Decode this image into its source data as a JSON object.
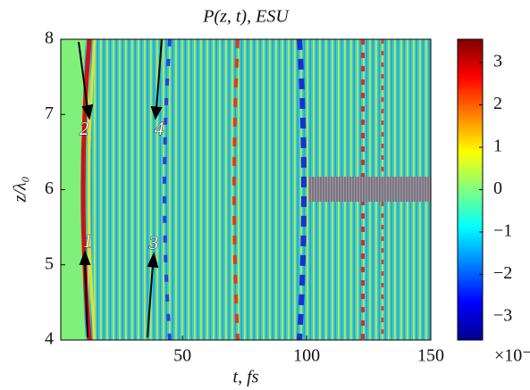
{
  "chart_data": {
    "type": "heatmap",
    "title": "P(z, t), ESU",
    "x_label": "t, fs",
    "y_label": "z/λ₀",
    "xlim": [
      1,
      150
    ],
    "xticks": [
      50,
      100,
      150
    ],
    "ylim": [
      4,
      8
    ],
    "yticks": [
      4,
      5,
      6,
      7,
      8
    ],
    "colormap": "jet",
    "clim": [
      -3.55,
      3.55
    ],
    "cticks": [
      {
        "value": -3,
        "label": "−3"
      },
      {
        "value": -2,
        "label": "−2"
      },
      {
        "value": -1,
        "label": "−1"
      },
      0,
      1,
      2,
      3
    ],
    "colorbar_multiplier": "×10⁻³",
    "annotations": [
      "1",
      "2",
      "3",
      "4"
    ]
  }
}
